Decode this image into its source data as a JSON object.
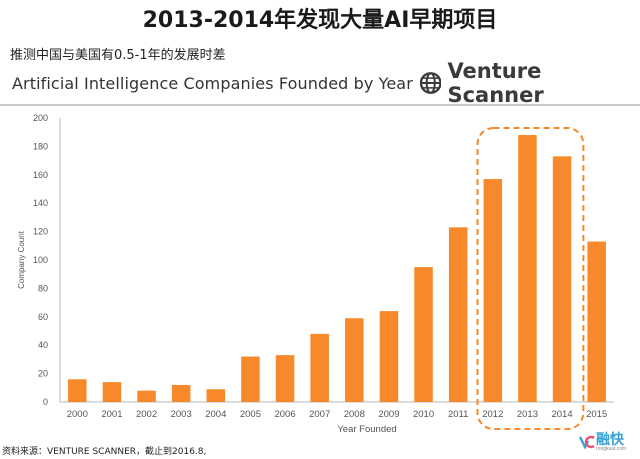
{
  "header": {
    "main_title": "2013-2014年发现大量AI早期项目",
    "subtitle": "推测中国与美国有0.5-1年的发展时差"
  },
  "brand": {
    "name": "Venture Scanner",
    "logo_icon": "globe-icon"
  },
  "footnote": "资料来源：VENTURE SCANNER，截止到2016.8,",
  "watermark": {
    "name": "融快",
    "url": "rongkuai.com",
    "icon": "vc-logo-icon"
  },
  "colors": {
    "bar": "#F7892A",
    "highlight": "#F7892A",
    "axis_text": "#555555",
    "grid": "#dddddd"
  },
  "chart_data": {
    "type": "bar",
    "title": "Artificial Intelligence Companies Founded by Year",
    "xlabel": "Year Founded",
    "ylabel": "Company Count",
    "ylim": [
      0,
      200
    ],
    "yticks": [
      0,
      20,
      40,
      60,
      80,
      100,
      120,
      140,
      160,
      180,
      200
    ],
    "categories": [
      "2000",
      "2001",
      "2002",
      "2003",
      "2004",
      "2005",
      "2006",
      "2007",
      "2008",
      "2009",
      "2010",
      "2011",
      "2012",
      "2013",
      "2014",
      "2015"
    ],
    "values": [
      16,
      14,
      8,
      12,
      9,
      32,
      33,
      48,
      59,
      64,
      95,
      123,
      157,
      188,
      173,
      113
    ],
    "highlight_range": [
      "2012",
      "2014"
    ],
    "grid": false
  }
}
